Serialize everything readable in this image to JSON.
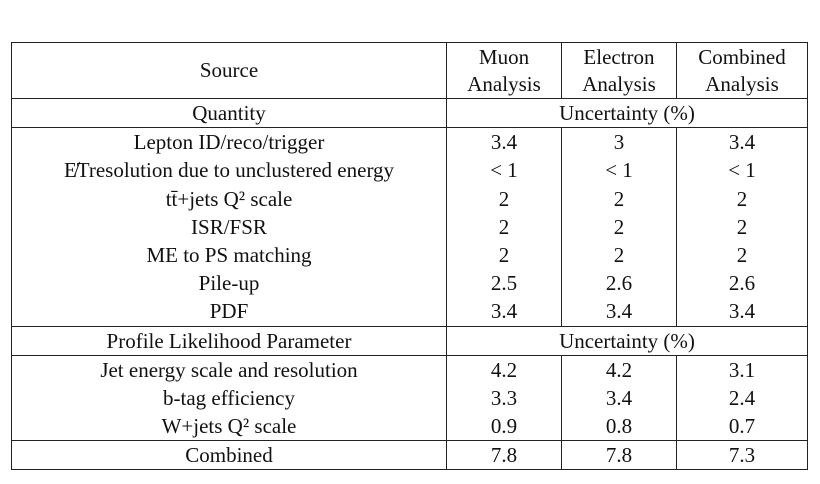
{
  "table": {
    "header": {
      "source": "Source",
      "columns": [
        [
          "Muon",
          "Analysis"
        ],
        [
          "Electron",
          "Analysis"
        ],
        [
          "Combined",
          "Analysis"
        ]
      ]
    },
    "sections": [
      {
        "label": "Quantity",
        "unit": "Uncertainty (%)",
        "rows": [
          [
            "Lepton ID/reco/trigger",
            3.4,
            3,
            3.4
          ],
          [
            "E̸Tresolution due to unclustered energy",
            "< 1",
            "< 1",
            "< 1"
          ],
          [
            "tt̄+jets Q² scale",
            2,
            2,
            2
          ],
          [
            "ISR/FSR",
            2,
            2,
            2
          ],
          [
            "ME to PS matching",
            2,
            2,
            2
          ],
          [
            "Pile-up",
            2.5,
            2.6,
            2.6
          ],
          [
            "PDF",
            3.4,
            3.4,
            3.4
          ]
        ]
      },
      {
        "label": "Profile Likelihood Parameter",
        "unit": "Uncertainty (%)",
        "rows": [
          [
            "Jet energy scale and resolution",
            4.2,
            4.2,
            3.1
          ],
          [
            "b-tag efficiency",
            3.3,
            3.4,
            2.4
          ],
          [
            "W+jets Q² scale",
            0.9,
            0.8,
            0.7
          ]
        ]
      }
    ],
    "total": [
      "Combined",
      7.8,
      7.8,
      7.3
    ]
  }
}
